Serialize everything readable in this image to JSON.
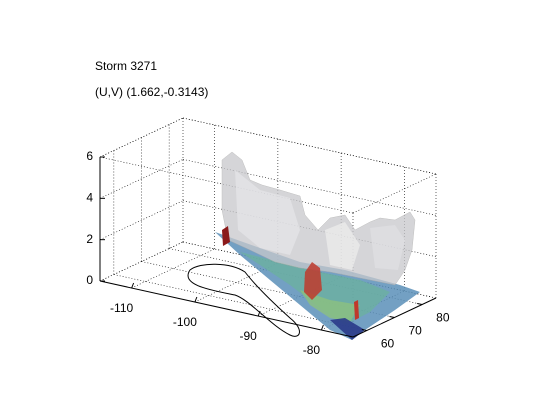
{
  "chart_data": {
    "type": "surface3d",
    "title": "Storm 3271",
    "subtitle": "(U,V) (1.662,-0.3143)",
    "xlim": [
      -115,
      -75
    ],
    "xticks": [
      -110,
      -100,
      -90,
      -80
    ],
    "ylim": [
      55,
      85
    ],
    "yticks": [
      60,
      70,
      80
    ],
    "zlim": [
      0,
      6
    ],
    "zticks": [
      0,
      2,
      4,
      6
    ],
    "grid": true
  }
}
